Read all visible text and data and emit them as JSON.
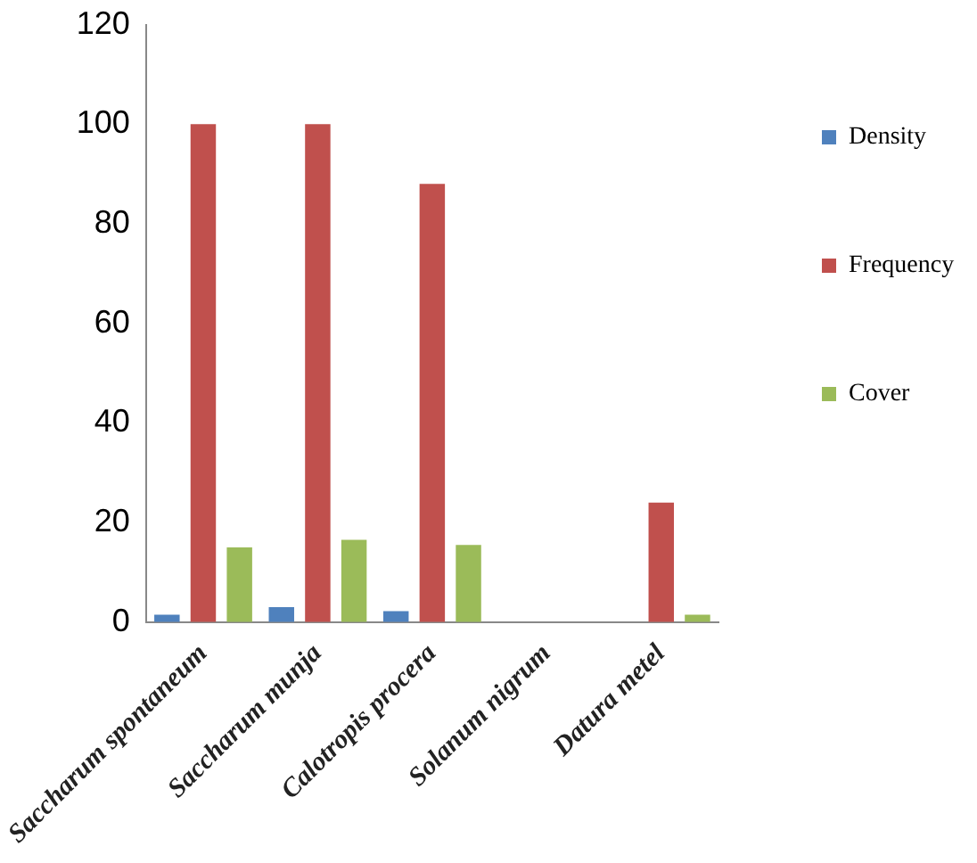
{
  "chart_data": {
    "type": "bar",
    "categories": [
      "Saccharum spontaneum",
      "Saccharum munja",
      "Calotropis procera",
      "Solanum nigrum",
      "Datura metel"
    ],
    "series": [
      {
        "name": "Density",
        "color": "#4f81bd",
        "values": [
          1.5,
          3,
          2.2,
          0,
          0
        ]
      },
      {
        "name": "Frequency",
        "color": "#c0504d",
        "values": [
          100,
          100,
          88,
          0,
          24
        ]
      },
      {
        "name": "Cover",
        "color": "#9bbb59",
        "values": [
          15,
          16.5,
          15.5,
          0,
          1.5
        ]
      }
    ],
    "ylim": [
      0,
      120
    ],
    "yticks": [
      0,
      20,
      40,
      60,
      80,
      100,
      120
    ],
    "grid": false,
    "legend": "right"
  }
}
